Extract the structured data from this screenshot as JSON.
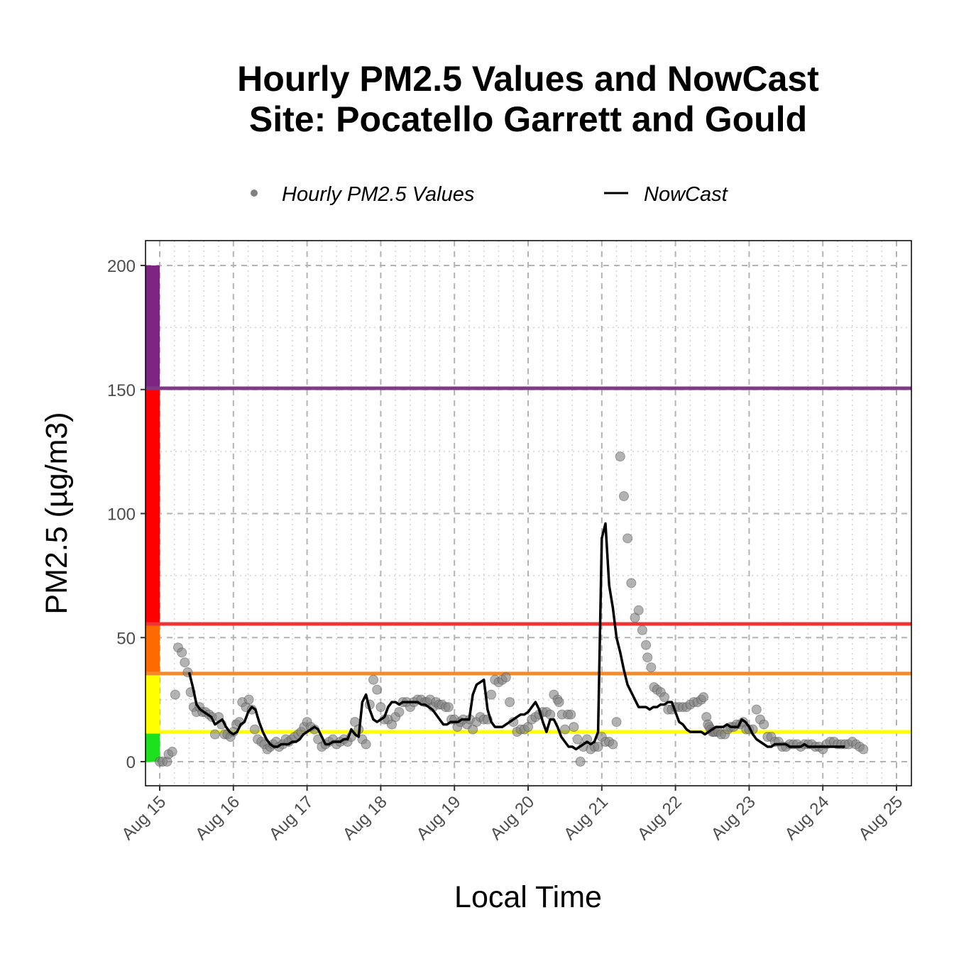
{
  "chart_data": {
    "type": "scatter",
    "title": "Hourly PM2.5 Values and NowCast",
    "subtitle": "Site: Pocatello Garrett and Gould",
    "xlabel": "Local Time",
    "ylabel": "PM2.5 (µg/m3)",
    "ylim": [
      -10,
      210
    ],
    "y_ticks": [
      0,
      50,
      100,
      150,
      200
    ],
    "x_range_days": [
      "Aug 15",
      "Aug 25"
    ],
    "x_tick_labels": [
      "Aug 15",
      "Aug 16",
      "Aug 17",
      "Aug 18",
      "Aug 19",
      "Aug 20",
      "Aug 21",
      "Aug 22",
      "Aug 23",
      "Aug 24",
      "Aug 25"
    ],
    "legend": {
      "placement": "top",
      "entries": [
        {
          "label": "Hourly PM2.5 Values",
          "symbol": "point",
          "color": "#808080"
        },
        {
          "label": "NowCast",
          "symbol": "line",
          "color": "#000000"
        }
      ]
    },
    "grid": true,
    "aqi_bands": [
      {
        "from": 0,
        "to": 12,
        "color": "#1ee11e"
      },
      {
        "from": 12,
        "to": 35.5,
        "color": "#ffff00"
      },
      {
        "from": 35.5,
        "to": 55.5,
        "color": "#ff6a00"
      },
      {
        "from": 55.5,
        "to": 150.5,
        "color": "#ff0000"
      },
      {
        "from": 150.5,
        "to": 200,
        "color": "#7e2582"
      }
    ],
    "thresholds": [
      {
        "y": 12,
        "color": "#ffff00"
      },
      {
        "y": 35.5,
        "color": "#f58a2d"
      },
      {
        "y": 55.5,
        "color": "#ee3434"
      },
      {
        "y": 150.5,
        "color": "#7e3a86"
      }
    ],
    "series": [
      {
        "name": "Hourly PM2.5 Values",
        "kind": "points",
        "x_day_offset": [
          0.0,
          0.04,
          0.1,
          0.12,
          0.17,
          0.21,
          0.25,
          0.3,
          0.34,
          0.38,
          0.42,
          0.46,
          0.5,
          0.54,
          0.58,
          0.62,
          0.67,
          0.71,
          0.75,
          0.8,
          0.84,
          0.88,
          0.92,
          0.96,
          1.0,
          1.04,
          1.08,
          1.12,
          1.17,
          1.21,
          1.25,
          1.29,
          1.33,
          1.38,
          1.42,
          1.46,
          1.5,
          1.54,
          1.58,
          1.62,
          1.67,
          1.71,
          1.75,
          1.79,
          1.83,
          1.88,
          1.92,
          1.96,
          2.0,
          2.05,
          2.1,
          2.15,
          2.2,
          2.25,
          2.3,
          2.35,
          2.4,
          2.45,
          2.5,
          2.55,
          2.6,
          2.65,
          2.7,
          2.75,
          2.8,
          2.85,
          2.9,
          2.95,
          3.0,
          3.05,
          3.1,
          3.15,
          3.2,
          3.25,
          3.3,
          3.35,
          3.4,
          3.45,
          3.5,
          3.55,
          3.6,
          3.63,
          3.67,
          3.71,
          3.75,
          3.79,
          3.83,
          3.88,
          3.92,
          3.96,
          4.0,
          4.04,
          4.08,
          4.12,
          4.17,
          4.21,
          4.25,
          4.3,
          4.35,
          4.4,
          4.45,
          4.5,
          4.55,
          4.6,
          4.65,
          4.7,
          4.75,
          4.8,
          4.85,
          4.9,
          4.95,
          5.0,
          5.05,
          5.1,
          5.15,
          5.2,
          5.25,
          5.3,
          5.35,
          5.4,
          5.42,
          5.46,
          5.5,
          5.54,
          5.58,
          5.62,
          5.67,
          5.71,
          5.75,
          5.8,
          5.85,
          5.9,
          5.95,
          6.0,
          6.05,
          6.1,
          6.15,
          6.2,
          6.25,
          6.3,
          6.35,
          6.4,
          6.45,
          6.5,
          6.55,
          6.6,
          6.62,
          6.67,
          6.71,
          6.75,
          6.8,
          6.85,
          6.9,
          6.95,
          7.0,
          7.05,
          7.1,
          7.15,
          7.2,
          7.25,
          7.3,
          7.35,
          7.38,
          7.42,
          7.44,
          7.46,
          7.48,
          7.5,
          7.52,
          7.54,
          7.58,
          7.62,
          7.67,
          7.71,
          7.75,
          7.79,
          7.83,
          7.88,
          7.92,
          7.96,
          8.0,
          8.05,
          8.1,
          8.15,
          8.2,
          8.25,
          8.3,
          8.35,
          8.4,
          8.45,
          8.5,
          8.55,
          8.6,
          8.65,
          8.7,
          8.75,
          8.8,
          8.85,
          8.9,
          8.95,
          9.0,
          9.05,
          9.1,
          9.15,
          9.2,
          9.25,
          9.3,
          9.35,
          9.4,
          9.45,
          9.5,
          9.55,
          9.6,
          9.65,
          9.7,
          9.75,
          9.8,
          9.85,
          9.9,
          9.95,
          10.0,
          10.05,
          10.1,
          10.15
        ],
        "y": [
          0,
          0,
          0,
          3,
          4,
          27,
          46,
          44,
          40,
          36,
          28,
          22,
          20,
          22,
          20,
          20,
          19,
          18,
          11,
          18,
          15,
          11,
          11,
          10,
          12,
          15,
          16,
          24,
          22,
          25,
          21,
          13,
          9,
          8,
          7,
          5,
          6,
          7,
          8,
          6,
          7,
          9,
          8,
          9,
          10,
          11,
          12,
          14,
          16,
          14,
          13,
          9,
          6,
          7,
          8,
          9,
          7,
          8,
          9,
          8,
          10,
          16,
          13,
          9,
          7,
          23,
          33,
          29,
          22,
          17,
          17,
          15,
          18,
          20,
          24,
          24,
          22,
          24,
          25,
          25,
          24,
          24,
          25,
          22,
          24,
          23,
          23,
          22,
          22,
          17,
          17,
          14,
          16,
          17,
          15,
          17,
          13,
          16,
          18,
          17,
          17,
          27,
          33,
          32,
          33,
          34,
          24,
          16,
          12,
          13,
          13,
          14,
          17,
          18,
          19,
          20,
          20,
          19,
          27,
          25,
          24,
          19,
          13,
          19,
          19,
          14,
          9,
          0,
          6,
          9,
          5,
          6,
          6,
          10,
          8,
          8,
          7,
          16,
          123,
          107,
          90,
          72,
          58,
          61,
          53,
          47,
          42,
          38,
          30,
          29,
          28,
          26,
          21,
          21,
          22,
          22,
          22,
          22,
          23,
          24,
          24,
          25,
          26,
          18,
          15,
          14,
          13,
          12,
          12,
          12,
          12,
          11,
          11,
          13,
          14,
          14,
          15,
          15,
          16,
          13,
          13,
          13,
          21,
          17,
          15,
          10,
          10,
          8,
          8,
          6,
          6,
          7,
          7,
          7,
          6,
          7,
          7,
          7,
          6,
          6,
          5,
          7,
          8,
          8,
          7,
          7,
          7,
          7,
          8,
          7,
          6,
          5
        ],
        "color": "#808080"
      },
      {
        "name": "NowCast",
        "kind": "line",
        "x_day_offset": [
          0.15,
          0.2,
          0.25,
          0.3,
          0.35,
          0.4,
          0.45,
          0.5,
          0.55,
          0.6,
          0.65,
          0.7,
          0.75,
          0.8,
          0.85,
          0.9,
          0.95,
          1.0,
          1.05,
          1.1,
          1.15,
          1.2,
          1.25,
          1.3,
          1.35,
          1.4,
          1.45,
          1.5,
          1.55,
          1.6,
          1.65,
          1.7,
          1.75,
          1.8,
          1.85,
          1.9,
          1.95,
          2.0,
          2.05,
          2.1,
          2.15,
          2.2,
          2.25,
          2.3,
          2.35,
          2.4,
          2.45,
          2.5,
          2.55,
          2.6,
          2.65,
          2.7,
          2.75,
          2.8,
          2.85,
          2.9,
          2.95,
          3.0,
          3.05,
          3.1,
          3.15,
          3.2,
          3.25,
          3.3,
          3.35,
          3.4,
          3.45,
          3.5,
          3.55,
          3.6,
          3.65,
          3.7,
          3.75,
          3.8,
          3.85,
          3.9,
          3.95,
          4.0,
          4.05,
          4.1,
          4.15,
          4.2,
          4.25,
          4.3,
          4.35,
          4.4,
          4.45,
          4.5,
          4.55,
          4.6,
          4.65,
          4.7,
          4.75,
          4.8,
          4.85,
          4.9,
          4.95,
          5.0,
          5.05,
          5.1,
          5.15,
          5.2,
          5.25,
          5.3,
          5.35,
          5.4,
          5.45,
          5.5,
          5.55,
          5.6,
          5.65,
          5.7,
          5.75,
          5.8,
          5.85,
          5.9,
          5.95,
          6.0,
          6.05,
          6.1,
          6.15,
          6.2,
          6.25,
          6.3,
          6.35,
          6.4,
          6.45,
          6.5,
          6.55,
          6.6,
          6.65,
          6.7,
          6.75,
          6.8,
          6.85,
          6.9,
          6.95,
          7.0,
          7.05,
          7.1,
          7.15,
          7.2,
          7.25,
          7.3,
          7.35,
          7.4,
          7.45,
          7.5,
          7.55,
          7.6,
          7.65,
          7.7,
          7.75,
          7.8,
          7.85,
          7.9,
          7.95,
          8.0,
          8.05,
          8.1,
          8.15,
          8.2,
          8.25,
          8.3,
          8.35,
          8.4,
          8.45,
          8.5,
          8.55,
          8.6,
          8.65,
          8.7,
          8.75,
          8.8,
          8.85,
          8.9,
          8.95,
          9.0,
          9.05,
          9.1,
          9.15,
          9.2,
          9.25,
          9.3,
          9.35,
          9.4,
          9.45,
          9.5,
          9.55,
          9.6,
          9.65,
          9.7,
          9.75,
          9.8,
          9.85,
          9.9,
          9.95,
          10.0,
          10.05,
          10.1,
          10.15
        ],
        "y": [
          null,
          null,
          null,
          null,
          null,
          36,
          30,
          23,
          21,
          20,
          19,
          18,
          15,
          16,
          17,
          14,
          12,
          11,
          12,
          15,
          16,
          20,
          22,
          21,
          16,
          12,
          9,
          7,
          6,
          6,
          7,
          7,
          7,
          8,
          8,
          9,
          11,
          12,
          13,
          14,
          13,
          10,
          7,
          7,
          8,
          8,
          8,
          9,
          9,
          13,
          11,
          10,
          24,
          27,
          21,
          17,
          16,
          17,
          18,
          22,
          24,
          24,
          23,
          24,
          24,
          24,
          24,
          24,
          23,
          23,
          22,
          21,
          19,
          17,
          15,
          15,
          16,
          16,
          16,
          17,
          17,
          17,
          27,
          31,
          32,
          33,
          21,
          16,
          14,
          14,
          14,
          15,
          16,
          17,
          18,
          19,
          19,
          20,
          22,
          24,
          21,
          16,
          12,
          17,
          17,
          14,
          10,
          8,
          6,
          6,
          5,
          6,
          7,
          8,
          7,
          8,
          12,
          90,
          96,
          71,
          62,
          50,
          44,
          37,
          31,
          28,
          25,
          22,
          22,
          22,
          21,
          22,
          22,
          23,
          23,
          24,
          24,
          20,
          16,
          15,
          13,
          12,
          12,
          12,
          12,
          11,
          12,
          13,
          14,
          14,
          14,
          15,
          14,
          14,
          14,
          17,
          16,
          14,
          11,
          9,
          8,
          7,
          6,
          6,
          7,
          7,
          7,
          7,
          6,
          6,
          6,
          6,
          7,
          6,
          6,
          6,
          6,
          6,
          6,
          6,
          6,
          6,
          6,
          6
        ]
      }
    ]
  }
}
